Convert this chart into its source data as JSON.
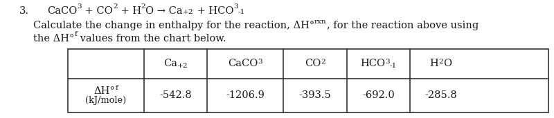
{
  "bg_color": "#ffffff",
  "text_color": "#1a1a1a",
  "font_size": 10.5,
  "sub_scale": 0.72,
  "table_values": [
    "-542.8",
    "-1206.9",
    "-393.5",
    "-692.0",
    "-285.8"
  ],
  "col_props": [
    0.158,
    0.132,
    0.158,
    0.132,
    0.132,
    0.128
  ]
}
